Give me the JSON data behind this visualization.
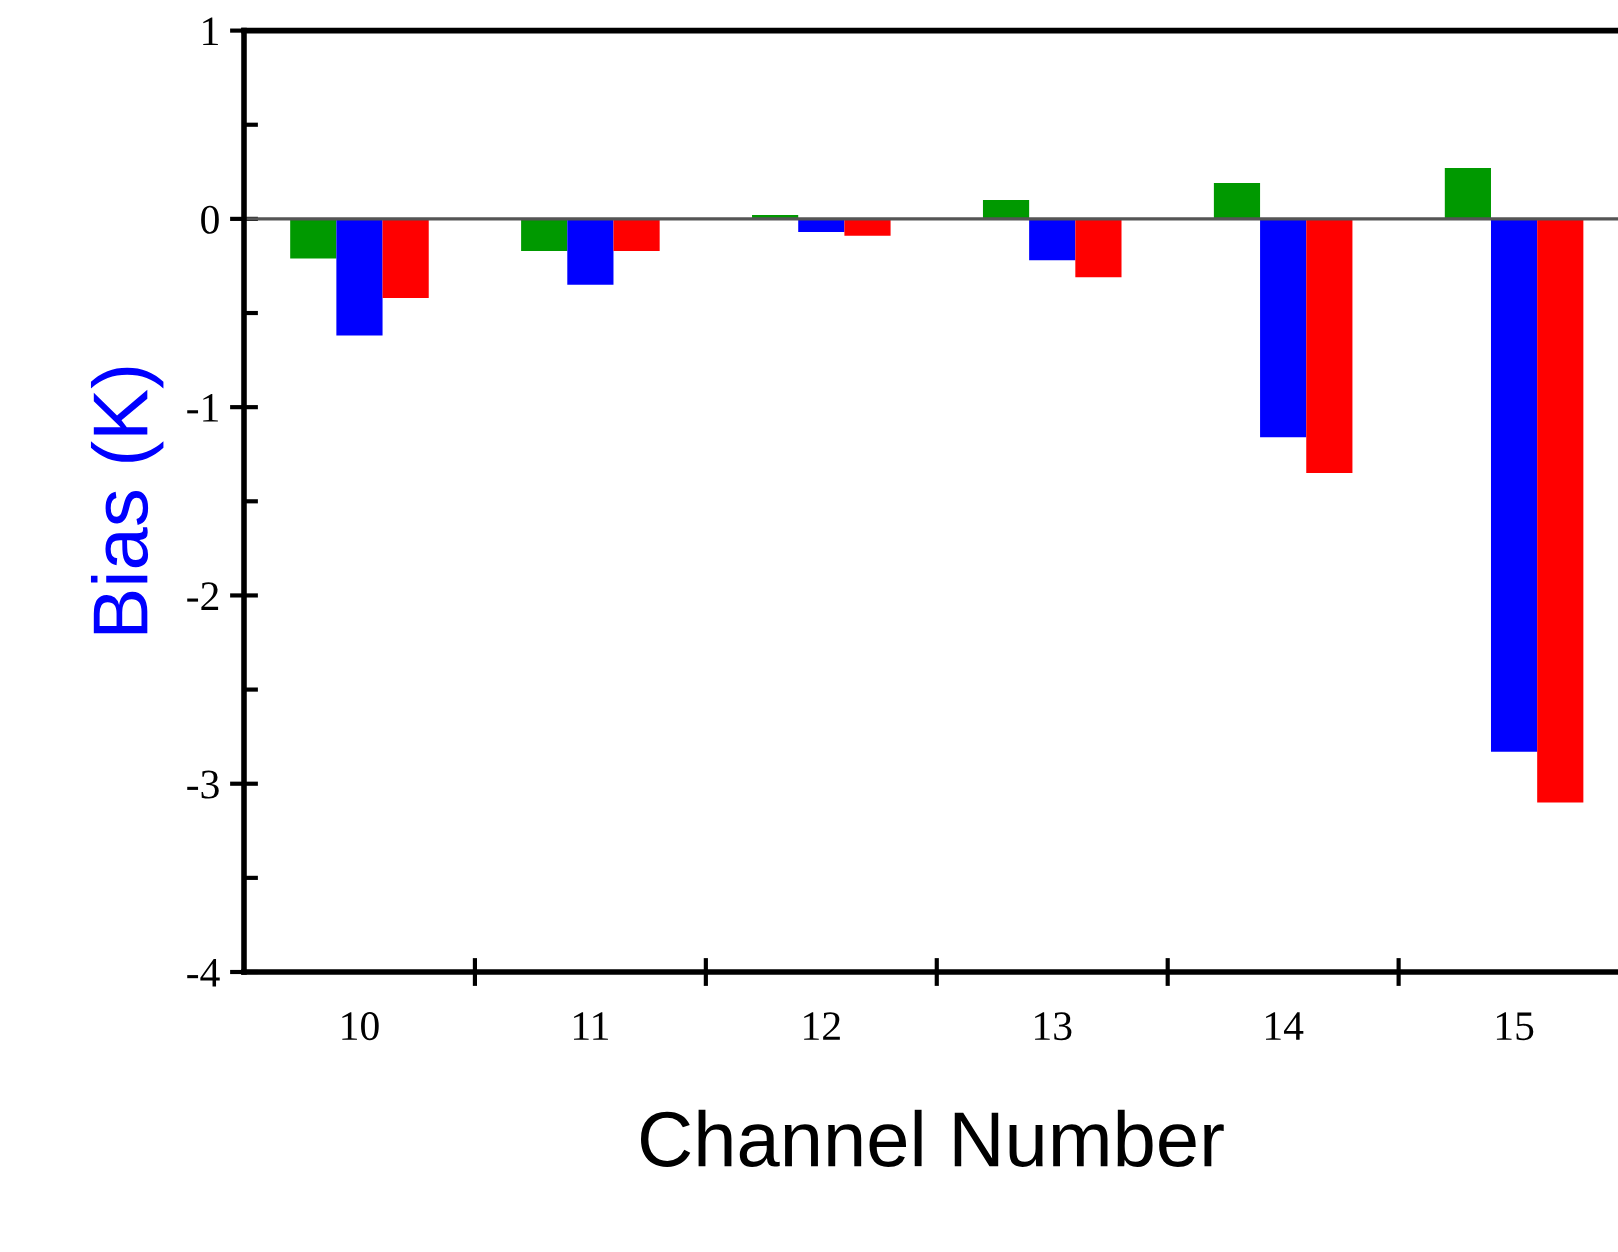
{
  "chart_data": {
    "type": "bar",
    "xlabel": "Channel Number",
    "ylabel": "Bias (K)",
    "categories": [
      "10",
      "11",
      "12",
      "13",
      "14",
      "15"
    ],
    "series": [
      {
        "color": "#009900",
        "values": [
          -0.21,
          -0.17,
          0.02,
          0.1,
          0.19,
          0.27
        ]
      },
      {
        "color": "#0000ff",
        "values": [
          -0.62,
          -0.35,
          -0.07,
          -0.22,
          -1.16,
          -2.83
        ]
      },
      {
        "color": "#ff0000",
        "values": [
          -0.42,
          -0.17,
          -0.09,
          -0.31,
          -1.35,
          -3.1
        ]
      }
    ],
    "ylim": [
      -4,
      1
    ],
    "yticks": [
      -4,
      -3,
      -2,
      -1,
      0,
      1
    ],
    "ref_lines": [
      {
        "axis": "y",
        "value": 0,
        "color": "#555555"
      }
    ],
    "legend": false
  }
}
